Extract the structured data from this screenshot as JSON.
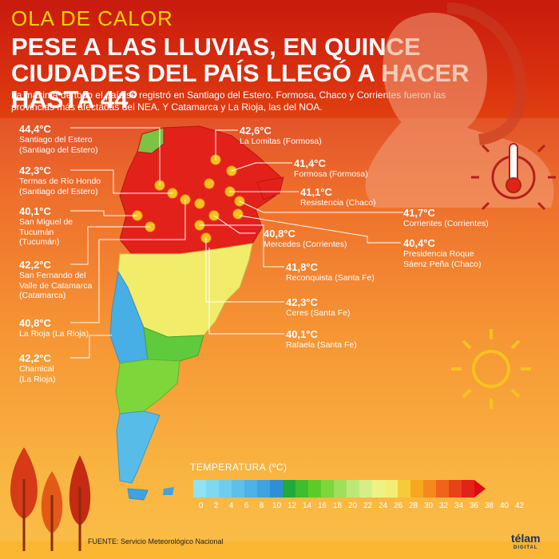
{
  "header": {
    "kicker": "OLA DE CALOR",
    "headline": "PESE A LAS LLUVIAS, EN QUINCE CIUDADES DEL PAÍS LLEGÓ A HACER HASTA 44°",
    "intro": "La máxima de todo el país se registró en Santiago del Estero. Formosa, Chaco y Corrientes fueron las provincias más afectadas del NEA. Y Catamarca y La Rioja, las del NOA."
  },
  "readings_left": [
    {
      "value": "44,4°C",
      "city": "Santiago del Estero\n(Santiago del Estero)"
    },
    {
      "value": "42,3°C",
      "city": "Termas de Río Hondo\n(Santiago del Estero)"
    },
    {
      "value": "40,1°C",
      "city": "San Miguel de\nTucumán\n(Tucumán)"
    },
    {
      "value": "42,2°C",
      "city": "San Fernando del\nValle de Catamarca\n(Catamarca)"
    },
    {
      "value": "40,8°C",
      "city": "La Rioja (La Rioja)"
    },
    {
      "value": "42,2°C",
      "city": "Chamical\n(La Rioja)"
    }
  ],
  "readings_right": [
    {
      "value": "42,6°C",
      "city": "La Lomitas (Formosa)"
    },
    {
      "value": "41,4°C",
      "city": "Formosa (Formosa)"
    },
    {
      "value": "41,1°C",
      "city": "Resistencia (Chaco)"
    },
    {
      "value": "41,7°C",
      "city": "Corrientes (Corrientes)"
    },
    {
      "value": "40,8°C",
      "city": "Mercedes (Corrientes)"
    },
    {
      "value": "40,4°C",
      "city": "Presidencia Roque\nSáenz Peña (Chaco)"
    },
    {
      "value": "41,8°C",
      "city": "Reconquista (Santa Fe)"
    },
    {
      "value": "42,3°C",
      "city": "Ceres (Santa Fe)"
    },
    {
      "value": "40,1°C",
      "city": "Rafaela (Santa Fe)"
    }
  ],
  "legend": {
    "title": "TEMPERATURA (ºC)",
    "ticks": [
      "0",
      "2",
      "4",
      "6",
      "8",
      "10",
      "12",
      "14",
      "16",
      "18",
      "20",
      "22",
      "24",
      "26",
      "28",
      "30",
      "32",
      "34",
      "36",
      "38",
      "40",
      "42"
    ],
    "colors": [
      "#8fe3f5",
      "#7fd8f2",
      "#6fccee",
      "#5ebfea",
      "#4fb2e6",
      "#3fa3e0",
      "#2f8fd6",
      "#1faa3a",
      "#3ebd2e",
      "#5ccb2a",
      "#7dd63a",
      "#9fe05a",
      "#bce877",
      "#d6ee8a",
      "#eef285",
      "#f4ef73",
      "#f8c93a",
      "#f7a81f",
      "#f5891c",
      "#ef6418",
      "#e8421a",
      "#e02418"
    ]
  },
  "footer": {
    "source": "FUENTE: Servicio Meteorológico Nacional",
    "brand": "télam",
    "brand_sub": "DIGITAL"
  }
}
